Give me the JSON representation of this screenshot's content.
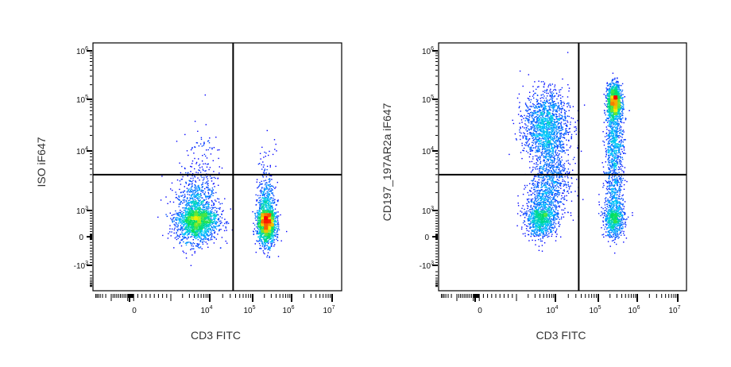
{
  "chart_data": [
    {
      "type": "scatter",
      "subtype": "flow-cytometry-density-dot-plot",
      "xlabel": "CD3 FITC",
      "ylabel": "ISO iF647",
      "x_scale": "biexponential",
      "y_scale": "biexponential",
      "xlim": [
        -2000,
        10000000
      ],
      "ylim": [
        -2500,
        1500000
      ],
      "x_ticks": [
        {
          "value": 0,
          "base": "0",
          "exp": ""
        },
        {
          "value": 10000,
          "base": "10",
          "exp": "4"
        },
        {
          "value": 100000,
          "base": "10",
          "exp": "5"
        },
        {
          "value": 1000000,
          "base": "10",
          "exp": "6"
        },
        {
          "value": 10000000,
          "base": "10",
          "exp": "7"
        }
      ],
      "y_ticks": [
        {
          "value": -1000,
          "base": "-10",
          "exp": "3"
        },
        {
          "value": 0,
          "base": "0",
          "exp": ""
        },
        {
          "value": 1000,
          "base": "10",
          "exp": "3"
        },
        {
          "value": 10000,
          "base": "10",
          "exp": "4"
        },
        {
          "value": 100000,
          "base": "10",
          "exp": "5"
        },
        {
          "value": 1000000,
          "base": "10",
          "exp": "6"
        }
      ],
      "quadrant_gate": {
        "x": 35000,
        "y": 4000
      },
      "populations": [
        {
          "name": "CD3- ISO-",
          "x_center": 4500,
          "y_center": 700,
          "x_sd_decades": 0.26,
          "y_sd": 0.42,
          "count": 2200
        },
        {
          "name": "CD3- ISO- tail",
          "x_center": 6000,
          "y_center": 7000,
          "x_sd_decades": 0.25,
          "y_sd": 0.35,
          "count": 90
        },
        {
          "name": "CD3+ ISO-",
          "x_center": 220000,
          "y_center": 600,
          "x_sd_decades": 0.12,
          "y_sd": 0.42,
          "count": 1900
        },
        {
          "name": "CD3+ ISO- tail",
          "x_center": 220000,
          "y_center": 6000,
          "x_sd_decades": 0.15,
          "y_sd": 0.3,
          "count": 25
        }
      ],
      "colormap": [
        "#0000ff",
        "#00c8ff",
        "#00e060",
        "#f0f000",
        "#ff0000"
      ]
    },
    {
      "type": "scatter",
      "subtype": "flow-cytometry-density-dot-plot",
      "xlabel": "CD3 FITC",
      "ylabel": "CD197_197AR2a iF647",
      "x_scale": "biexponential",
      "y_scale": "biexponential",
      "xlim": [
        -2000,
        10000000
      ],
      "ylim": [
        -2500,
        1500000
      ],
      "x_ticks": [
        {
          "value": 0,
          "base": "0",
          "exp": ""
        },
        {
          "value": 10000,
          "base": "10",
          "exp": "4"
        },
        {
          "value": 100000,
          "base": "10",
          "exp": "5"
        },
        {
          "value": 1000000,
          "base": "10",
          "exp": "6"
        },
        {
          "value": 10000000,
          "base": "10",
          "exp": "7"
        }
      ],
      "y_ticks": [
        {
          "value": -1000,
          "base": "-10",
          "exp": "3"
        },
        {
          "value": 0,
          "base": "0",
          "exp": ""
        },
        {
          "value": 1000,
          "base": "10",
          "exp": "3"
        },
        {
          "value": 10000,
          "base": "10",
          "exp": "4"
        },
        {
          "value": 100000,
          "base": "10",
          "exp": "5"
        },
        {
          "value": 1000000,
          "base": "10",
          "exp": "6"
        }
      ],
      "quadrant_gate": {
        "x": 35000,
        "y": 4000
      },
      "populations": [
        {
          "name": "CD3- CD197-",
          "x_center": 4300,
          "y_center": 800,
          "x_sd_decades": 0.2,
          "y_sd": 0.38,
          "count": 1200
        },
        {
          "name": "CD3- CD197+",
          "x_center": 5500,
          "y_center": 30000,
          "x_sd_decades": 0.28,
          "y_sd": 0.35,
          "count": 1500
        },
        {
          "name": "CD3- bridge",
          "x_center": 8000,
          "y_center": 3500,
          "x_sd_decades": 0.22,
          "y_sd": 0.35,
          "count": 600
        },
        {
          "name": "CD3+ CD197+ bright",
          "x_center": 250000,
          "y_center": 90000,
          "x_sd_decades": 0.09,
          "y_sd": 0.18,
          "count": 1300
        },
        {
          "name": "CD3+ CD197+ mid",
          "x_center": 250000,
          "y_center": 12000,
          "x_sd_decades": 0.12,
          "y_sd": 0.4,
          "count": 700
        },
        {
          "name": "CD3+ CD197-",
          "x_center": 250000,
          "y_center": 800,
          "x_sd_decades": 0.13,
          "y_sd": 0.4,
          "count": 900
        }
      ],
      "colormap": [
        "#0000ff",
        "#00c8ff",
        "#00e060",
        "#f0f000",
        "#ff0000"
      ]
    }
  ]
}
